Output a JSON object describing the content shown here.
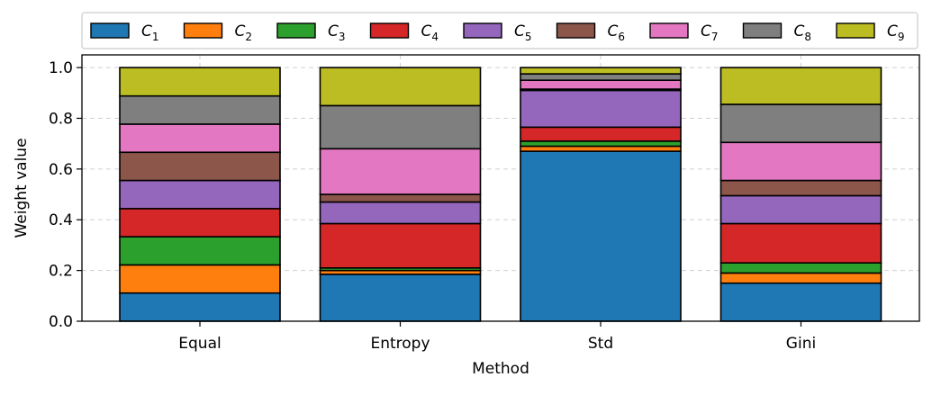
{
  "chart_data": {
    "type": "bar",
    "stacked": true,
    "title": "",
    "xlabel": "Method",
    "ylabel": "Weight value",
    "ylim": [
      0,
      1.05
    ],
    "yticks": [
      0.0,
      0.2,
      0.4,
      0.6,
      0.8,
      1.0
    ],
    "ytick_labels": [
      "0.0",
      "0.2",
      "0.4",
      "0.6",
      "0.8",
      "1.0"
    ],
    "grid": true,
    "legend_position": "top, outside plot, single row",
    "categories": [
      "Equal",
      "Entropy",
      "Std",
      "Gini"
    ],
    "series": [
      {
        "name": "C",
        "sub": "1",
        "color": "#1f77b4",
        "values": [
          0.111,
          0.185,
          0.67,
          0.15
        ]
      },
      {
        "name": "C",
        "sub": "2",
        "color": "#ff7f0e",
        "values": [
          0.111,
          0.015,
          0.02,
          0.04
        ]
      },
      {
        "name": "C",
        "sub": "3",
        "color": "#2ca02c",
        "values": [
          0.111,
          0.01,
          0.02,
          0.04
        ]
      },
      {
        "name": "C",
        "sub": "4",
        "color": "#d62728",
        "values": [
          0.111,
          0.175,
          0.055,
          0.155
        ]
      },
      {
        "name": "C",
        "sub": "5",
        "color": "#9467bd",
        "values": [
          0.111,
          0.085,
          0.145,
          0.11
        ]
      },
      {
        "name": "C",
        "sub": "6",
        "color": "#8c564b",
        "values": [
          0.111,
          0.03,
          0.005,
          0.06
        ]
      },
      {
        "name": "C",
        "sub": "7",
        "color": "#e377c2",
        "values": [
          0.111,
          0.18,
          0.035,
          0.15
        ]
      },
      {
        "name": "C",
        "sub": "8",
        "color": "#7f7f7f",
        "values": [
          0.111,
          0.17,
          0.025,
          0.15
        ]
      },
      {
        "name": "C",
        "sub": "9",
        "color": "#bcbd22",
        "values": [
          0.112,
          0.15,
          0.025,
          0.145
        ]
      }
    ]
  }
}
